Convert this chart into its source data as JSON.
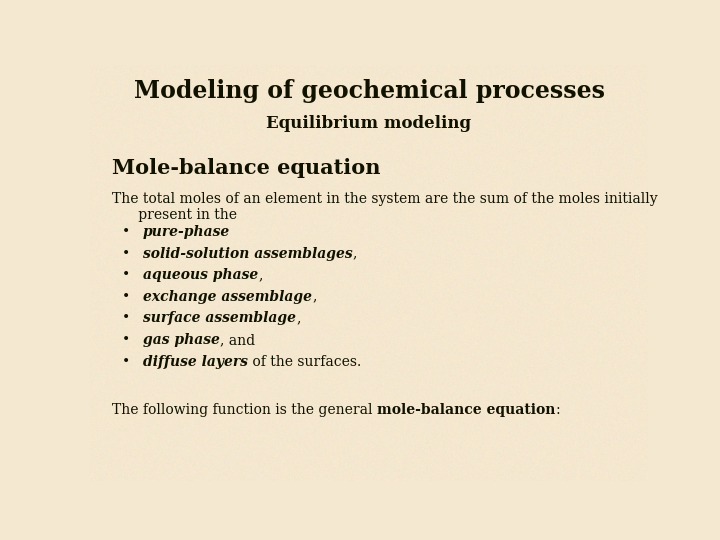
{
  "title": "Modeling of geochemical processes",
  "subtitle": "Equilibrium modeling",
  "section_header": "Mole-balance equation",
  "intro_line1": "The total moles of an element in the system are the sum of the moles initially",
  "intro_line2": "      present in the",
  "bullet_items": [
    {
      "bold_italic": "pure-phase",
      "rest": ""
    },
    {
      "bold_italic": "solid-solution assemblages",
      "rest": ","
    },
    {
      "bold_italic": "aqueous phase",
      "rest": ","
    },
    {
      "bold_italic": "exchange assemblage",
      "rest": ","
    },
    {
      "bold_italic": "surface assemblage",
      "rest": ","
    },
    {
      "bold_italic": "gas phase",
      "rest": ", and"
    },
    {
      "bold_italic": "diffuse layers",
      "rest": " of the surfaces."
    }
  ],
  "footer_start": "The following function is the general ",
  "footer_bold": "mole-balance equation",
  "footer_end": ":",
  "bg_color": "#f5e8d0",
  "text_color": "#111100",
  "title_fontsize": 17,
  "subtitle_fontsize": 12,
  "header_fontsize": 15,
  "body_fontsize": 10,
  "bullet_fontsize": 10,
  "footer_fontsize": 10
}
